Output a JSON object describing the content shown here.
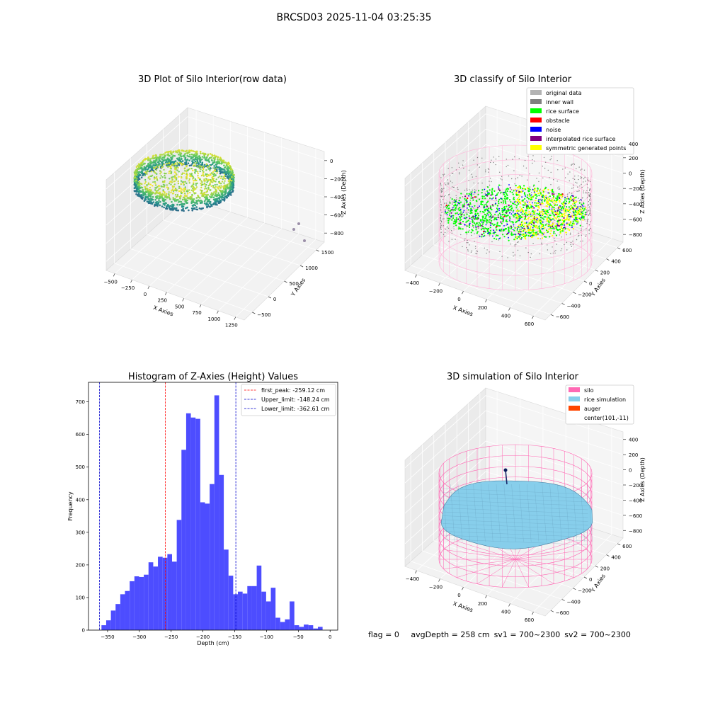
{
  "suptitle": "BRCSD03 2025-11-04 03:25:35",
  "footer": {
    "flag": "flag = 0",
    "avg_depth": "avgDepth = 258 cm",
    "sv1": "sv1 = 700~2300",
    "sv2": "sv2 = 700~2300"
  },
  "colors": {
    "original_data": "#b3b3b3",
    "inner_wall": "#808080",
    "rice_surface": "#00ff00",
    "obstacle": "#ff0000",
    "noise": "#0000ff",
    "interpolated": "#800080",
    "symmetric": "#ffff00",
    "silo": "#ff69b4",
    "rice_sim": "#87ceeb",
    "auger": "#ff4500",
    "hist_bar": "#4d4dff",
    "peak_line": "#ff0000",
    "limit_line": "#0000cc",
    "pane": "#f2f2f2"
  },
  "chart_data": [
    {
      "type": "scatter3d",
      "title": "3D Plot of Silo Interior(row data)",
      "xlabel": "X Axies",
      "ylabel": "Y Axies",
      "zlabel": "Z Axies (Depth)",
      "x_ticks": [
        "−500",
        "−250",
        "0",
        "250",
        "500",
        "750",
        "1000",
        "1250"
      ],
      "y_ticks": [
        "−500",
        "0",
        "500",
        "1000",
        "1500"
      ],
      "z_ticks": [
        "0",
        "−200",
        "−400",
        "−600",
        "−800"
      ],
      "xlim": [
        -600,
        1300
      ],
      "ylim": [
        -600,
        1600
      ],
      "zlim": [
        -900,
        50
      ],
      "colormap": "viridis"
    },
    {
      "type": "scatter3d",
      "title": "3D classify of Silo Interior",
      "xlabel": "X Axies",
      "ylabel": "Y Axies",
      "zlabel": "Z Axies (Depth)",
      "x_ticks": [
        "−400",
        "−200",
        "0",
        "200",
        "400",
        "600"
      ],
      "y_ticks": [
        "−600",
        "−400",
        "−200",
        "0",
        "200",
        "400",
        "600"
      ],
      "z_ticks": [
        "200",
        "0",
        "−200",
        "−400",
        "−600",
        "−800"
      ],
      "xlim": [
        -500,
        700
      ],
      "ylim": [
        -650,
        650
      ],
      "zlim": [
        -900,
        300
      ],
      "legend_position": "top-right",
      "legend": [
        {
          "label": "original data",
          "color": "#b3b3b3"
        },
        {
          "label": "inner wall",
          "color": "#808080"
        },
        {
          "label": "rice surface",
          "color": "#00ff00"
        },
        {
          "label": "obstacle",
          "color": "#ff0000"
        },
        {
          "label": "noise",
          "color": "#0000ff"
        },
        {
          "label": "interpolated rice surface",
          "color": "#800080"
        },
        {
          "label": "symmetric generated points",
          "color": "#ffff00"
        }
      ],
      "top_tick": "400"
    },
    {
      "type": "bar",
      "title": "Histogram of Z-Axies (Height) Values",
      "xlabel": "Depth (cm)",
      "ylabel": "Frequency",
      "xlim": [
        -380,
        12
      ],
      "ylim": [
        0,
        760
      ],
      "x_ticks": [
        -350,
        -300,
        -250,
        -200,
        -150,
        -100,
        -50,
        0
      ],
      "y_ticks": [
        0,
        100,
        200,
        300,
        400,
        500,
        600,
        700
      ],
      "bin_start": -367,
      "bin_width": 7.4,
      "values": [
        0,
        15,
        30,
        60,
        80,
        110,
        120,
        150,
        165,
        163,
        170,
        208,
        195,
        225,
        222,
        233,
        210,
        338,
        553,
        665,
        652,
        648,
        392,
        388,
        448,
        720,
        476,
        247,
        167,
        110,
        118,
        112,
        135,
        135,
        198,
        118,
        88,
        130,
        38,
        25,
        33,
        88,
        15,
        10,
        17,
        15,
        5,
        10
      ],
      "vlines": [
        {
          "label": "first_peak: -259.12 cm",
          "value": -259.12,
          "color": "#ff0000"
        },
        {
          "label": "Upper_limit: -148.24 cm",
          "value": -148.24,
          "color": "#0000cc"
        },
        {
          "label": "Lower_limit: -362.61 cm",
          "value": -362.61,
          "color": "#0000cc"
        }
      ],
      "legend_position": "top-right"
    },
    {
      "type": "surface3d",
      "title": "3D simulation of Silo Interior",
      "xlabel": "X Axies",
      "ylabel": "Y Axies",
      "zlabel": "Z Axies (Depth)",
      "x_ticks": [
        "−400",
        "−200",
        "0",
        "200",
        "400",
        "600"
      ],
      "y_ticks": [
        "−600",
        "−400",
        "−200",
        "0",
        "200",
        "400",
        "600"
      ],
      "z_ticks": [
        "400",
        "200",
        "0",
        "−200",
        "−400",
        "−600",
        "−800"
      ],
      "xlim": [
        -500,
        700
      ],
      "ylim": [
        -650,
        650
      ],
      "zlim": [
        -900,
        450
      ],
      "legend_position": "top-right",
      "legend": [
        {
          "label": "silo",
          "color": "#ff69b4"
        },
        {
          "label": "rice simulation",
          "color": "#87ceeb"
        },
        {
          "label": "auger",
          "color": "#ff4500"
        },
        {
          "label": "center(101,-11)",
          "color": ""
        }
      ]
    }
  ]
}
